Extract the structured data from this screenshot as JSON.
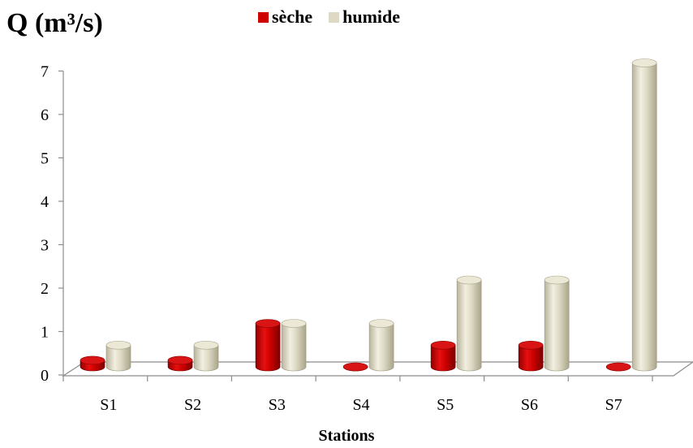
{
  "chart_data": {
    "type": "bar",
    "ylabel": "Q (m³/s)",
    "xlabel": "Stations",
    "categories": [
      "S1",
      "S2",
      "S3",
      "S4",
      "S5",
      "S6",
      "S7"
    ],
    "series": [
      {
        "name": "sèche",
        "color": "#cc0000",
        "values": [
          0.15,
          0.15,
          1.0,
          0.0,
          0.5,
          0.5,
          0.0
        ]
      },
      {
        "name": "humide",
        "color": "#ddd9c3",
        "values": [
          0.5,
          0.5,
          1.0,
          1.0,
          2.0,
          2.0,
          7.0
        ]
      }
    ],
    "ylim": [
      0,
      7
    ],
    "yticks": [
      "0",
      "1",
      "2",
      "3",
      "4",
      "5",
      "6",
      "7"
    ],
    "legend": "top",
    "grid": false
  }
}
